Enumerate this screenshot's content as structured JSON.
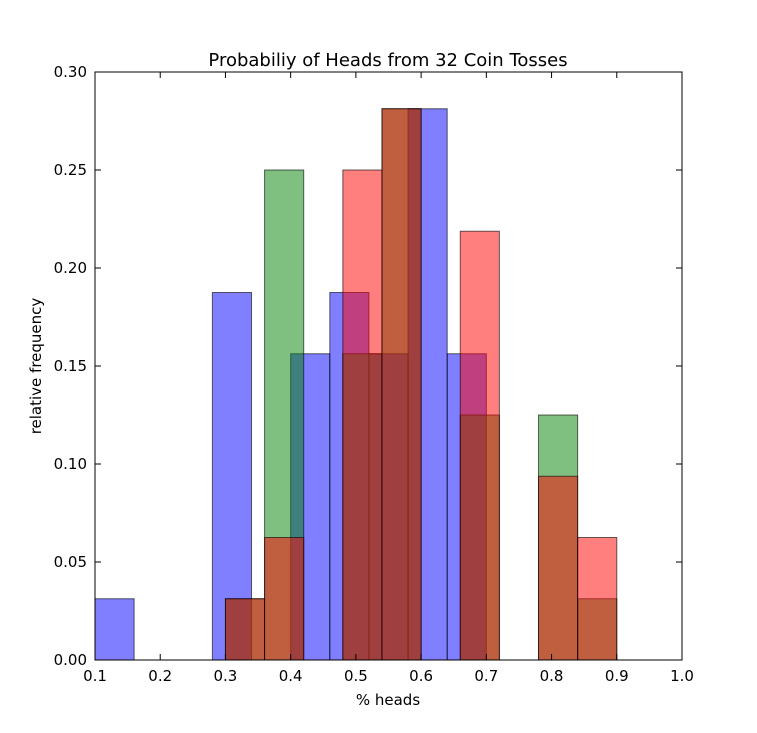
{
  "chart_data": {
    "type": "bar",
    "title": "Probabiliy of Heads from 32 Coin Tosses",
    "xlabel": "% heads",
    "ylabel": "relative frequency",
    "xlim": [
      0.1,
      1.0
    ],
    "ylim": [
      0.0,
      0.3
    ],
    "xticks": [
      "0.1",
      "0.2",
      "0.3",
      "0.4",
      "0.5",
      "0.6",
      "0.7",
      "0.8",
      "0.9",
      "1.0"
    ],
    "yticks": [
      "0.00",
      "0.05",
      "0.10",
      "0.15",
      "0.20",
      "0.25",
      "0.30"
    ],
    "grid": false,
    "legend": "none",
    "series": [
      {
        "color": "#0000ff",
        "bins": [
          {
            "x0": 0.1,
            "x1": 0.16,
            "value": 0.03125
          },
          {
            "x0": 0.28,
            "x1": 0.34,
            "value": 0.1875
          },
          {
            "x0": 0.4,
            "x1": 0.46,
            "value": 0.15625
          },
          {
            "x0": 0.46,
            "x1": 0.52,
            "value": 0.1875
          },
          {
            "x0": 0.52,
            "x1": 0.58,
            "value": 0.15625
          },
          {
            "x0": 0.58,
            "x1": 0.64,
            "value": 0.28125
          },
          {
            "x0": 0.64,
            "x1": 0.7,
            "value": 0.15625
          }
        ]
      },
      {
        "color": "#008000",
        "bins": [
          {
            "x0": 0.3,
            "x1": 0.36,
            "value": 0.03125
          },
          {
            "x0": 0.36,
            "x1": 0.42,
            "value": 0.25
          },
          {
            "x0": 0.48,
            "x1": 0.54,
            "value": 0.15625
          },
          {
            "x0": 0.54,
            "x1": 0.6,
            "value": 0.28125
          },
          {
            "x0": 0.66,
            "x1": 0.72,
            "value": 0.125
          },
          {
            "x0": 0.78,
            "x1": 0.84,
            "value": 0.125
          },
          {
            "x0": 0.84,
            "x1": 0.9,
            "value": 0.03125
          }
        ]
      },
      {
        "color": "#ff0000",
        "bins": [
          {
            "x0": 0.3,
            "x1": 0.36,
            "value": 0.03125
          },
          {
            "x0": 0.36,
            "x1": 0.42,
            "value": 0.0625
          },
          {
            "x0": 0.48,
            "x1": 0.54,
            "value": 0.25
          },
          {
            "x0": 0.54,
            "x1": 0.6,
            "value": 0.28125
          },
          {
            "x0": 0.66,
            "x1": 0.72,
            "value": 0.21875
          },
          {
            "x0": 0.78,
            "x1": 0.84,
            "value": 0.09375
          },
          {
            "x0": 0.84,
            "x1": 0.9,
            "value": 0.0625
          }
        ]
      }
    ]
  }
}
